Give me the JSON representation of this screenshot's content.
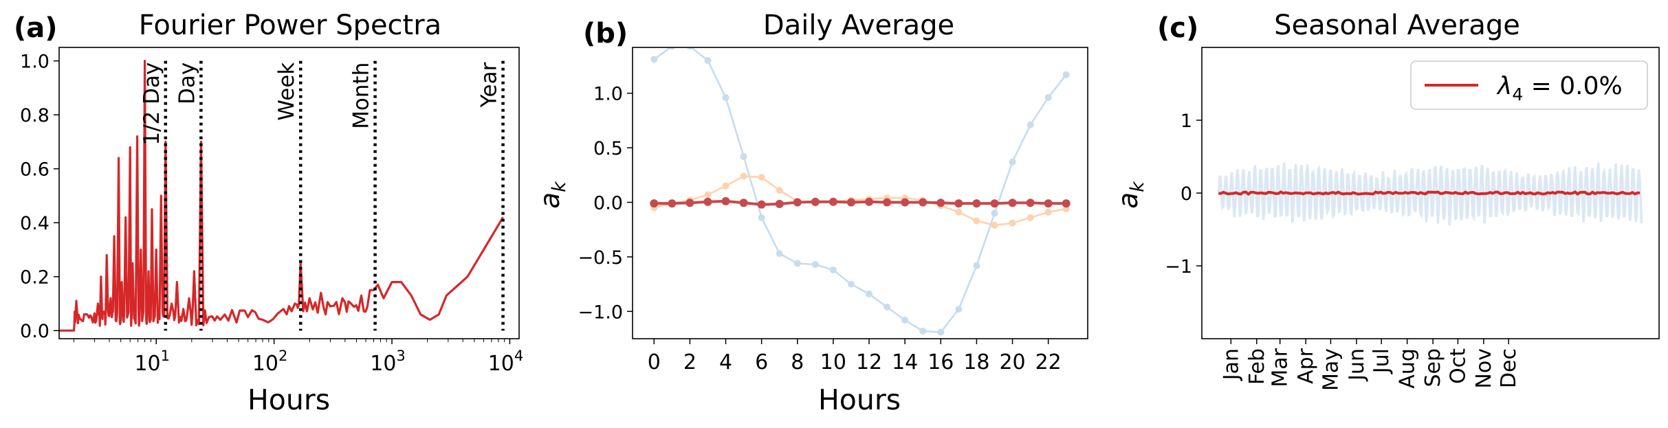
{
  "chart_data": [
    {
      "type": "line",
      "panel_label": "(a)",
      "title": "Fourier Power Spectra",
      "xlabel": "Hours",
      "ylabel": "",
      "xscale": "log",
      "xlim": [
        1.5,
        12000
      ],
      "ylim": [
        -0.03,
        1.05
      ],
      "xticks": [
        10,
        100,
        1000,
        10000
      ],
      "xtick_labels": [
        {
          "base": "10",
          "exp": "1"
        },
        {
          "base": "10",
          "exp": "2"
        },
        {
          "base": "10",
          "exp": "3"
        },
        {
          "base": "10",
          "exp": "4"
        }
      ],
      "yticks": [
        0.0,
        0.2,
        0.4,
        0.6,
        0.8,
        1.0
      ],
      "ytick_labels": [
        "0.0",
        "0.2",
        "0.4",
        "0.6",
        "0.8",
        "1.0"
      ],
      "series_color": "#d62728",
      "markers": [
        {
          "label": "1/2 Day",
          "x": 12
        },
        {
          "label": "Day",
          "x": 24
        },
        {
          "label": "Week",
          "x": 168
        },
        {
          "label": "Month",
          "x": 720
        },
        {
          "label": "Year",
          "x": 8760
        }
      ],
      "peaks": [
        {
          "x": 2.1,
          "y": 0.11
        },
        {
          "x": 2.3,
          "y": 0.04
        },
        {
          "x": 2.6,
          "y": 0.06
        },
        {
          "x": 2.9,
          "y": 0.03
        },
        {
          "x": 3.2,
          "y": 0.1
        },
        {
          "x": 3.4,
          "y": 0.2
        },
        {
          "x": 3.6,
          "y": 0.07
        },
        {
          "x": 3.8,
          "y": 0.28
        },
        {
          "x": 4.1,
          "y": 0.12
        },
        {
          "x": 4.4,
          "y": 0.35
        },
        {
          "x": 4.8,
          "y": 0.64
        },
        {
          "x": 5.1,
          "y": 0.18
        },
        {
          "x": 5.5,
          "y": 0.42
        },
        {
          "x": 6.0,
          "y": 0.68
        },
        {
          "x": 6.3,
          "y": 0.25
        },
        {
          "x": 6.9,
          "y": 0.72
        },
        {
          "x": 7.4,
          "y": 0.3
        },
        {
          "x": 8.0,
          "y": 1.0
        },
        {
          "x": 8.6,
          "y": 0.22
        },
        {
          "x": 9.2,
          "y": 0.45
        },
        {
          "x": 10.0,
          "y": 0.3
        },
        {
          "x": 11.0,
          "y": 0.5
        },
        {
          "x": 12.0,
          "y": 0.7
        },
        {
          "x": 13.5,
          "y": 0.1
        },
        {
          "x": 15.0,
          "y": 0.18
        },
        {
          "x": 17.0,
          "y": 0.08
        },
        {
          "x": 19.0,
          "y": 0.12
        },
        {
          "x": 21.0,
          "y": 0.22
        },
        {
          "x": 24.0,
          "y": 0.7
        },
        {
          "x": 28.0,
          "y": 0.05
        },
        {
          "x": 35.0,
          "y": 0.04
        },
        {
          "x": 48.0,
          "y": 0.03
        },
        {
          "x": 60.0,
          "y": 0.05
        },
        {
          "x": 80.0,
          "y": 0.04
        },
        {
          "x": 120.0,
          "y": 0.08
        },
        {
          "x": 150.0,
          "y": 0.1
        },
        {
          "x": 168.0,
          "y": 0.25
        },
        {
          "x": 200.0,
          "y": 0.12
        },
        {
          "x": 250.0,
          "y": 0.14
        },
        {
          "x": 300.0,
          "y": 0.09
        },
        {
          "x": 380.0,
          "y": 0.12
        },
        {
          "x": 450.0,
          "y": 0.1
        },
        {
          "x": 550.0,
          "y": 0.13
        },
        {
          "x": 650.0,
          "y": 0.15
        }
      ],
      "tail": [
        {
          "x": 700,
          "y": 0.15
        },
        {
          "x": 760,
          "y": 0.17
        },
        {
          "x": 850,
          "y": 0.12
        },
        {
          "x": 1000,
          "y": 0.18
        },
        {
          "x": 1200,
          "y": 0.18
        },
        {
          "x": 1460,
          "y": 0.13
        },
        {
          "x": 1750,
          "y": 0.06
        },
        {
          "x": 2100,
          "y": 0.04
        },
        {
          "x": 2500,
          "y": 0.06
        },
        {
          "x": 2900,
          "y": 0.13
        },
        {
          "x": 4380,
          "y": 0.2
        },
        {
          "x": 8760,
          "y": 0.42
        }
      ]
    },
    {
      "type": "line",
      "panel_label": "(b)",
      "title": "Daily Average",
      "xlabel": "Hours",
      "ylabel": "a_k",
      "xlim": [
        -1.2,
        24.2
      ],
      "ylim": [
        -1.25,
        1.42
      ],
      "xticks": [
        0,
        2,
        4,
        6,
        8,
        10,
        12,
        14,
        16,
        18,
        20,
        22
      ],
      "xtick_labels": [
        "0",
        "2",
        "4",
        "6",
        "8",
        "10",
        "12",
        "14",
        "16",
        "18",
        "20",
        "22"
      ],
      "yticks": [
        -1.0,
        -0.5,
        0.0,
        0.5,
        1.0
      ],
      "ytick_labels": [
        "−1.0",
        "−0.5",
        "0.0",
        "0.5",
        "1.0"
      ],
      "x": [
        0,
        1,
        2,
        3,
        4,
        5,
        6,
        7,
        8,
        9,
        10,
        11,
        12,
        13,
        14,
        15,
        16,
        17,
        18,
        19,
        20,
        21,
        22,
        23
      ],
      "series": [
        {
          "color": "#c6dcef",
          "values": [
            1.31,
            1.43,
            1.43,
            1.3,
            0.96,
            0.42,
            -0.14,
            -0.47,
            -0.56,
            -0.57,
            -0.62,
            -0.75,
            -0.84,
            -0.96,
            -1.08,
            -1.18,
            -1.19,
            -0.98,
            -0.58,
            -0.1,
            0.37,
            0.71,
            0.96,
            1.17
          ]
        },
        {
          "color": "#ffd2ad",
          "values": [
            -0.05,
            -0.01,
            0.02,
            0.07,
            0.15,
            0.24,
            0.23,
            0.11,
            0.01,
            -0.01,
            0.01,
            0.02,
            0.03,
            0.04,
            0.04,
            0.02,
            -0.03,
            -0.09,
            -0.17,
            -0.21,
            -0.19,
            -0.14,
            -0.09,
            -0.06
          ]
        },
        {
          "color": "#c64a4c",
          "values": [
            -0.01,
            -0.01,
            -0.005,
            0.005,
            0.01,
            -0.005,
            -0.02,
            -0.015,
            0.0,
            0.005,
            0.005,
            0.0,
            0.005,
            0.0,
            0.0,
            0.0,
            -0.005,
            -0.01,
            -0.01,
            -0.01,
            -0.005,
            -0.005,
            -0.01,
            -0.01
          ]
        }
      ]
    },
    {
      "type": "line",
      "panel_label": "(c)",
      "title": "Seasonal Average",
      "xlabel": "",
      "ylabel": "a_k",
      "xlim": [
        -20,
        530
      ],
      "ylim": [
        -2.0,
        2.0
      ],
      "months": [
        "Jan",
        "Feb",
        "Mar",
        "Apr",
        "May",
        "Jun",
        "Jul",
        "Aug",
        "Sep",
        "Oct",
        "Nov",
        "Dec"
      ],
      "month_positions": [
        15,
        46,
        74,
        105,
        135,
        166,
        196,
        227,
        258,
        288,
        319,
        349
      ],
      "x_extent": [
        0,
        509
      ],
      "yticks": [
        -1,
        0,
        1
      ],
      "ytick_labels": [
        "−1",
        "0",
        "1"
      ],
      "background_amplitude": 0.32,
      "background_period_days": 7,
      "series": [
        {
          "name": "λ₄ = 0.0%",
          "color": "#d62728",
          "value": 0.0
        }
      ],
      "legend": {
        "position": "top-right",
        "prefix": "λ",
        "subscript": "4",
        "suffix": " = 0.0%"
      }
    }
  ]
}
